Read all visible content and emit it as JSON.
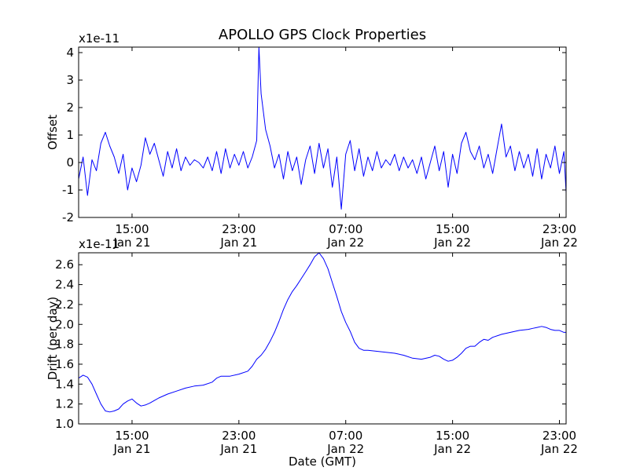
{
  "title": "APOLLO GPS Clock Properties",
  "chart_data": [
    {
      "type": "line",
      "ylabel": "Offset",
      "y_multiplier": "x1e-11",
      "xlabel": "",
      "ylim": [
        -2,
        4.2
      ],
      "yticks": [
        "-2",
        "-1",
        "0",
        "1",
        "2",
        "3",
        "4"
      ],
      "xticks": [
        {
          "time": "15:00",
          "date": "Jan 21"
        },
        {
          "time": "23:00",
          "date": "Jan 21"
        },
        {
          "time": "07:00",
          "date": "Jan 22"
        },
        {
          "time": "15:00",
          "date": "Jan 22"
        },
        {
          "time": "23:00",
          "date": "Jan 22"
        }
      ],
      "xlim": [
        "Jan 21 11:00",
        "Jan 22 23:30"
      ],
      "grid": false,
      "series": [
        {
          "color": "#0000ff",
          "points": [
            [
              "Jan 21 11:00",
              -0.6
            ],
            [
              "Jan 21 11:20",
              0.2
            ],
            [
              "Jan 21 11:40",
              -1.2
            ],
            [
              "Jan 21 12:00",
              0.1
            ],
            [
              "Jan 21 12:20",
              -0.3
            ],
            [
              "Jan 21 12:40",
              0.7
            ],
            [
              "Jan 21 13:00",
              1.1
            ],
            [
              "Jan 21 13:20",
              0.6
            ],
            [
              "Jan 21 13:40",
              0.2
            ],
            [
              "Jan 21 14:00",
              -0.4
            ],
            [
              "Jan 21 14:20",
              0.3
            ],
            [
              "Jan 21 14:40",
              -1.0
            ],
            [
              "Jan 21 15:00",
              -0.2
            ],
            [
              "Jan 21 15:20",
              -0.7
            ],
            [
              "Jan 21 15:40",
              -0.1
            ],
            [
              "Jan 21 16:00",
              0.9
            ],
            [
              "Jan 21 16:20",
              0.3
            ],
            [
              "Jan 21 16:40",
              0.7
            ],
            [
              "Jan 21 17:00",
              0.1
            ],
            [
              "Jan 21 17:20",
              -0.5
            ],
            [
              "Jan 21 17:40",
              0.4
            ],
            [
              "Jan 21 18:00",
              -0.2
            ],
            [
              "Jan 21 18:20",
              0.5
            ],
            [
              "Jan 21 18:40",
              -0.3
            ],
            [
              "Jan 21 19:00",
              0.2
            ],
            [
              "Jan 21 19:20",
              -0.1
            ],
            [
              "Jan 21 19:40",
              0.1
            ],
            [
              "Jan 21 20:00",
              0.0
            ],
            [
              "Jan 21 20:20",
              -0.2
            ],
            [
              "Jan 21 20:40",
              0.2
            ],
            [
              "Jan 21 21:00",
              -0.3
            ],
            [
              "Jan 21 21:20",
              0.4
            ],
            [
              "Jan 21 21:40",
              -0.4
            ],
            [
              "Jan 21 22:00",
              0.5
            ],
            [
              "Jan 21 22:20",
              -0.2
            ],
            [
              "Jan 21 22:40",
              0.3
            ],
            [
              "Jan 21 23:00",
              -0.1
            ],
            [
              "Jan 21 23:20",
              0.4
            ],
            [
              "Jan 21 23:40",
              -0.2
            ],
            [
              "Jan 22 00:00",
              0.2
            ],
            [
              "Jan 22 00:20",
              0.8
            ],
            [
              "Jan 22 00:30",
              4.2
            ],
            [
              "Jan 22 00:40",
              2.5
            ],
            [
              "Jan 22 01:00",
              1.2
            ],
            [
              "Jan 22 01:20",
              0.6
            ],
            [
              "Jan 22 01:40",
              -0.2
            ],
            [
              "Jan 22 02:00",
              0.3
            ],
            [
              "Jan 22 02:20",
              -0.6
            ],
            [
              "Jan 22 02:40",
              0.4
            ],
            [
              "Jan 22 03:00",
              -0.3
            ],
            [
              "Jan 22 03:20",
              0.2
            ],
            [
              "Jan 22 03:40",
              -0.8
            ],
            [
              "Jan 22 04:00",
              0.1
            ],
            [
              "Jan 22 04:20",
              0.6
            ],
            [
              "Jan 22 04:40",
              -0.4
            ],
            [
              "Jan 22 05:00",
              0.7
            ],
            [
              "Jan 22 05:20",
              -0.2
            ],
            [
              "Jan 22 05:40",
              0.5
            ],
            [
              "Jan 22 06:00",
              -0.9
            ],
            [
              "Jan 22 06:20",
              0.2
            ],
            [
              "Jan 22 06:40",
              -1.7
            ],
            [
              "Jan 22 07:00",
              0.3
            ],
            [
              "Jan 22 07:20",
              0.8
            ],
            [
              "Jan 22 07:40",
              -0.3
            ],
            [
              "Jan 22 08:00",
              0.5
            ],
            [
              "Jan 22 08:20",
              -0.5
            ],
            [
              "Jan 22 08:40",
              0.2
            ],
            [
              "Jan 22 09:00",
              -0.3
            ],
            [
              "Jan 22 09:20",
              0.4
            ],
            [
              "Jan 22 09:40",
              -0.2
            ],
            [
              "Jan 22 10:00",
              0.1
            ],
            [
              "Jan 22 10:20",
              -0.1
            ],
            [
              "Jan 22 10:40",
              0.3
            ],
            [
              "Jan 22 11:00",
              -0.3
            ],
            [
              "Jan 22 11:20",
              0.2
            ],
            [
              "Jan 22 11:40",
              -0.2
            ],
            [
              "Jan 22 12:00",
              0.1
            ],
            [
              "Jan 22 12:20",
              -0.4
            ],
            [
              "Jan 22 12:40",
              0.2
            ],
            [
              "Jan 22 13:00",
              -0.6
            ],
            [
              "Jan 22 13:20",
              0.0
            ],
            [
              "Jan 22 13:40",
              0.6
            ],
            [
              "Jan 22 14:00",
              -0.3
            ],
            [
              "Jan 22 14:20",
              0.4
            ],
            [
              "Jan 22 14:40",
              -0.9
            ],
            [
              "Jan 22 15:00",
              0.3
            ],
            [
              "Jan 22 15:20",
              -0.4
            ],
            [
              "Jan 22 15:40",
              0.7
            ],
            [
              "Jan 22 16:00",
              1.1
            ],
            [
              "Jan 22 16:20",
              0.4
            ],
            [
              "Jan 22 16:40",
              0.1
            ],
            [
              "Jan 22 17:00",
              0.6
            ],
            [
              "Jan 22 17:20",
              -0.2
            ],
            [
              "Jan 22 17:40",
              0.3
            ],
            [
              "Jan 22 18:00",
              -0.4
            ],
            [
              "Jan 22 18:20",
              0.5
            ],
            [
              "Jan 22 18:40",
              1.4
            ],
            [
              "Jan 22 19:00",
              0.2
            ],
            [
              "Jan 22 19:20",
              0.6
            ],
            [
              "Jan 22 19:40",
              -0.3
            ],
            [
              "Jan 22 20:00",
              0.4
            ],
            [
              "Jan 22 20:20",
              -0.2
            ],
            [
              "Jan 22 20:40",
              0.3
            ],
            [
              "Jan 22 21:00",
              -0.5
            ],
            [
              "Jan 22 21:20",
              0.5
            ],
            [
              "Jan 22 21:40",
              -0.6
            ],
            [
              "Jan 22 22:00",
              0.3
            ],
            [
              "Jan 22 22:20",
              -0.2
            ],
            [
              "Jan 22 22:40",
              0.6
            ],
            [
              "Jan 22 23:00",
              -0.4
            ],
            [
              "Jan 22 23:20",
              0.4
            ],
            [
              "Jan 22 23:30",
              -1.1
            ]
          ]
        }
      ]
    },
    {
      "type": "line",
      "ylabel": "Drift (per day)",
      "y_multiplier": "x1e-11",
      "xlabel": "Date (GMT)",
      "ylim": [
        1.0,
        2.72
      ],
      "yticks": [
        "1.0",
        "1.2",
        "1.4",
        "1.6",
        "1.8",
        "2.0",
        "2.2",
        "2.4",
        "2.6"
      ],
      "xticks": [
        {
          "time": "15:00",
          "date": "Jan 21"
        },
        {
          "time": "23:00",
          "date": "Jan 21"
        },
        {
          "time": "07:00",
          "date": "Jan 22"
        },
        {
          "time": "15:00",
          "date": "Jan 22"
        },
        {
          "time": "23:00",
          "date": "Jan 22"
        }
      ],
      "xlim": [
        "Jan 21 11:00",
        "Jan 22 23:30"
      ],
      "grid": false,
      "series": [
        {
          "color": "#0000ff",
          "points": [
            [
              "Jan 21 11:00",
              1.46
            ],
            [
              "Jan 21 11:20",
              1.49
            ],
            [
              "Jan 21 11:40",
              1.47
            ],
            [
              "Jan 21 12:00",
              1.4
            ],
            [
              "Jan 21 12:20",
              1.3
            ],
            [
              "Jan 21 12:40",
              1.2
            ],
            [
              "Jan 21 13:00",
              1.13
            ],
            [
              "Jan 21 13:20",
              1.12
            ],
            [
              "Jan 21 13:40",
              1.13
            ],
            [
              "Jan 21 14:00",
              1.15
            ],
            [
              "Jan 21 14:20",
              1.2
            ],
            [
              "Jan 21 14:40",
              1.23
            ],
            [
              "Jan 21 15:00",
              1.25
            ],
            [
              "Jan 21 15:20",
              1.21
            ],
            [
              "Jan 21 15:40",
              1.18
            ],
            [
              "Jan 21 16:00",
              1.19
            ],
            [
              "Jan 21 16:20",
              1.21
            ],
            [
              "Jan 21 17:00",
              1.26
            ],
            [
              "Jan 21 17:40",
              1.3
            ],
            [
              "Jan 21 18:20",
              1.33
            ],
            [
              "Jan 21 19:00",
              1.36
            ],
            [
              "Jan 21 19:40",
              1.38
            ],
            [
              "Jan 21 20:20",
              1.39
            ],
            [
              "Jan 21 21:00",
              1.42
            ],
            [
              "Jan 21 21:20",
              1.46
            ],
            [
              "Jan 21 21:40",
              1.48
            ],
            [
              "Jan 21 22:20",
              1.48
            ],
            [
              "Jan 21 23:00",
              1.5
            ],
            [
              "Jan 21 23:40",
              1.53
            ],
            [
              "Jan 22 00:00",
              1.58
            ],
            [
              "Jan 22 00:20",
              1.65
            ],
            [
              "Jan 22 00:40",
              1.69
            ],
            [
              "Jan 22 01:00",
              1.75
            ],
            [
              "Jan 22 01:20",
              1.83
            ],
            [
              "Jan 22 01:40",
              1.92
            ],
            [
              "Jan 22 02:00",
              2.03
            ],
            [
              "Jan 22 02:20",
              2.15
            ],
            [
              "Jan 22 02:40",
              2.25
            ],
            [
              "Jan 22 03:00",
              2.33
            ],
            [
              "Jan 22 03:20",
              2.39
            ],
            [
              "Jan 22 03:40",
              2.46
            ],
            [
              "Jan 22 04:00",
              2.53
            ],
            [
              "Jan 22 04:20",
              2.6
            ],
            [
              "Jan 22 04:40",
              2.68
            ],
            [
              "Jan 22 05:00",
              2.72
            ],
            [
              "Jan 22 05:20",
              2.66
            ],
            [
              "Jan 22 05:40",
              2.56
            ],
            [
              "Jan 22 06:00",
              2.42
            ],
            [
              "Jan 22 06:20",
              2.28
            ],
            [
              "Jan 22 06:40",
              2.13
            ],
            [
              "Jan 22 07:00",
              2.02
            ],
            [
              "Jan 22 07:20",
              1.93
            ],
            [
              "Jan 22 07:40",
              1.82
            ],
            [
              "Jan 22 08:00",
              1.76
            ],
            [
              "Jan 22 08:20",
              1.74
            ],
            [
              "Jan 22 08:40",
              1.74
            ],
            [
              "Jan 22 09:20",
              1.73
            ],
            [
              "Jan 22 10:00",
              1.72
            ],
            [
              "Jan 22 10:40",
              1.71
            ],
            [
              "Jan 22 11:20",
              1.69
            ],
            [
              "Jan 22 12:00",
              1.66
            ],
            [
              "Jan 22 12:40",
              1.65
            ],
            [
              "Jan 22 13:20",
              1.67
            ],
            [
              "Jan 22 13:40",
              1.69
            ],
            [
              "Jan 22 14:00",
              1.68
            ],
            [
              "Jan 22 14:20",
              1.65
            ],
            [
              "Jan 22 14:40",
              1.63
            ],
            [
              "Jan 22 15:00",
              1.64
            ],
            [
              "Jan 22 15:20",
              1.67
            ],
            [
              "Jan 22 15:40",
              1.71
            ],
            [
              "Jan 22 16:00",
              1.76
            ],
            [
              "Jan 22 16:20",
              1.78
            ],
            [
              "Jan 22 16:40",
              1.78
            ],
            [
              "Jan 22 17:00",
              1.82
            ],
            [
              "Jan 22 17:20",
              1.85
            ],
            [
              "Jan 22 17:40",
              1.84
            ],
            [
              "Jan 22 18:00",
              1.87
            ],
            [
              "Jan 22 18:40",
              1.9
            ],
            [
              "Jan 22 19:20",
              1.92
            ],
            [
              "Jan 22 20:00",
              1.94
            ],
            [
              "Jan 22 20:40",
              1.95
            ],
            [
              "Jan 22 21:00",
              1.96
            ],
            [
              "Jan 22 21:20",
              1.97
            ],
            [
              "Jan 22 21:40",
              1.98
            ],
            [
              "Jan 22 22:00",
              1.97
            ],
            [
              "Jan 22 22:20",
              1.95
            ],
            [
              "Jan 22 22:40",
              1.94
            ],
            [
              "Jan 22 23:00",
              1.94
            ],
            [
              "Jan 22 23:20",
              1.92
            ],
            [
              "Jan 22 23:30",
              1.92
            ]
          ]
        }
      ]
    }
  ]
}
